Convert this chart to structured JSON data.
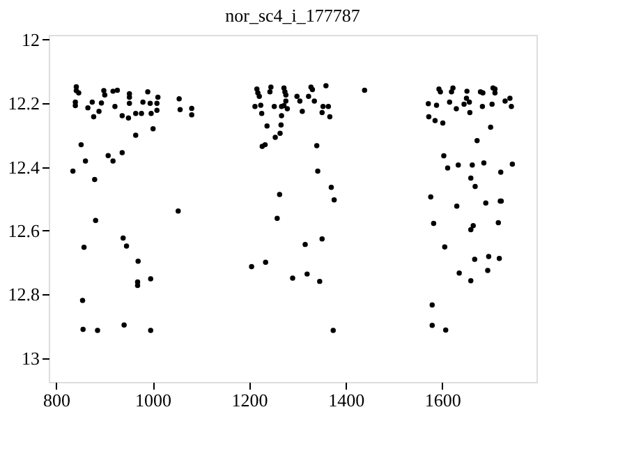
{
  "chart_data": {
    "type": "scatter",
    "title": "nor_sc4_i_177787",
    "marker": "circle",
    "grid": false,
    "xlim": [
      785,
      1795
    ],
    "xticks": [
      800,
      1000,
      1200,
      1400,
      1600
    ],
    "ylim": [
      13.075,
      11.985
    ],
    "yticks": [
      12,
      12.2,
      12.4,
      12.6,
      12.8,
      13
    ],
    "series": [
      {
        "color": "#000000",
        "x": [
          842,
          842,
          840,
          840,
          847,
          866,
          875,
          878,
          889,
          894,
          899,
          901,
          918,
          927,
          922,
          937,
          952,
          952,
          952,
          950,
          965,
          977,
          980,
          990,
          995,
          997,
          1009,
          1011,
          1009,
          965,
          1001,
          1055,
          1057,
          1081,
          1081,
          852,
          861,
          835,
          908,
          918,
          937,
          880,
          1053,
          882,
          858,
          939,
          946,
          970,
          969,
          969,
          996,
          855,
          856,
          886,
          941,
          996,
          1216,
          1218,
          1221,
          1245,
          1243,
          1272,
          1274,
          1276,
          1276,
          1272,
          1279,
          1212,
          1224,
          1252,
          1267,
          1226,
          1299,
          1305,
          1310,
          1328,
          1331,
          1323,
          1335,
          1359,
          1353,
          1364,
          1351,
          1367,
          1439,
          1267,
          1237,
          1266,
          1264,
          1254,
          1233,
          1227,
          1340,
          1342,
          1370,
          1376,
          1263,
          1258,
          1351,
          1316,
          1234,
          1205,
          1320,
          1290,
          1346,
          1374,
          1593,
          1596,
          1622,
          1619,
          1651,
          1650,
          1679,
          1684,
          1705,
          1571,
          1588,
          1615,
          1629,
          1645,
          1656,
          1657,
          1683,
          1703,
          1572,
          1585,
          1601,
          1700,
          1672,
          1603,
          1611,
          1633,
          1662,
          1686,
          1659,
          1668,
          1576,
          1630,
          1690,
          1582,
          1664,
          1659,
          1605,
          1667,
          1696,
          1635,
          1694,
          1659,
          1579,
          1579,
          1607,
          1709,
          1709,
          1730,
          1740,
          1743,
          1745,
          1721,
          1720,
          1722,
          1716,
          1718
        ],
        "values": [
          12.148,
          12.16,
          12.196,
          12.207,
          12.167,
          12.214,
          12.196,
          12.242,
          12.225,
          12.199,
          12.16,
          12.174,
          12.162,
          12.159,
          12.21,
          12.239,
          12.17,
          12.181,
          12.2,
          12.246,
          12.232,
          12.232,
          12.196,
          12.164,
          12.2,
          12.232,
          12.2,
          12.181,
          12.222,
          12.3,
          12.28,
          12.186,
          12.22,
          12.216,
          12.236,
          12.33,
          12.381,
          12.413,
          12.364,
          12.381,
          12.355,
          12.439,
          12.538,
          12.568,
          12.652,
          12.623,
          12.648,
          12.696,
          12.761,
          12.772,
          12.751,
          12.819,
          12.91,
          12.913,
          12.896,
          12.913,
          12.155,
          12.167,
          12.178,
          12.149,
          12.164,
          12.152,
          12.164,
          12.174,
          12.193,
          12.207,
          12.217,
          12.21,
          12.206,
          12.21,
          12.21,
          12.232,
          12.178,
          12.193,
          12.225,
          12.149,
          12.157,
          12.178,
          12.193,
          12.145,
          12.21,
          12.21,
          12.229,
          12.242,
          12.159,
          12.239,
          12.271,
          12.268,
          12.294,
          12.307,
          12.33,
          12.335,
          12.333,
          12.413,
          12.464,
          12.503,
          12.486,
          12.561,
          12.626,
          12.643,
          12.699,
          12.713,
          12.736,
          12.749,
          12.759,
          12.913,
          12.155,
          12.164,
          12.152,
          12.164,
          12.162,
          12.184,
          12.164,
          12.167,
          12.152,
          12.201,
          12.206,
          12.196,
          12.217,
          12.203,
          12.196,
          12.229,
          12.21,
          12.203,
          12.242,
          12.254,
          12.262,
          12.275,
          12.317,
          12.365,
          12.403,
          12.394,
          12.394,
          12.387,
          12.435,
          12.461,
          12.494,
          12.523,
          12.513,
          12.577,
          12.584,
          12.597,
          12.651,
          12.69,
          12.681,
          12.733,
          12.725,
          12.757,
          12.833,
          12.897,
          12.912,
          12.155,
          12.167,
          12.193,
          12.184,
          12.21,
          12.391,
          12.416,
          12.507,
          12.507,
          12.575,
          12.687
        ]
      }
    ]
  }
}
